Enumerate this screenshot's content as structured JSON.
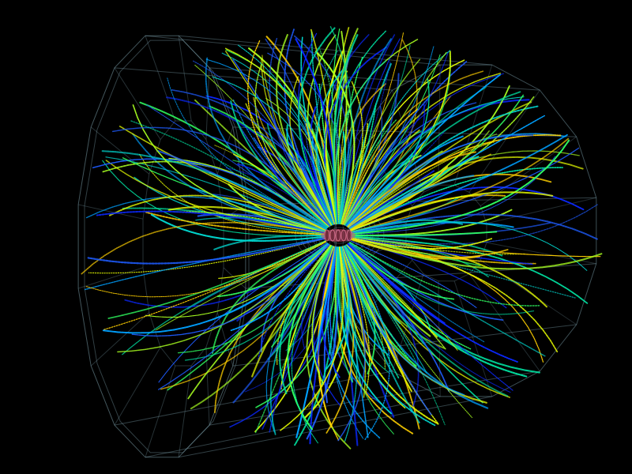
{
  "scene": {
    "subject": "particle-collision-event-display",
    "background_color": "#000000",
    "detector": {
      "wireframe_color": "#6f8f9a",
      "inner_wire_color": "#8a9aa6",
      "core_color": "#d05070"
    },
    "tracks": {
      "count": 360,
      "palette": [
        "#0a28ff",
        "#1e5cff",
        "#00a0ff",
        "#00d8d0",
        "#00e0a0",
        "#30ff60",
        "#a8ff20",
        "#e8ff00",
        "#ffd000"
      ]
    }
  }
}
